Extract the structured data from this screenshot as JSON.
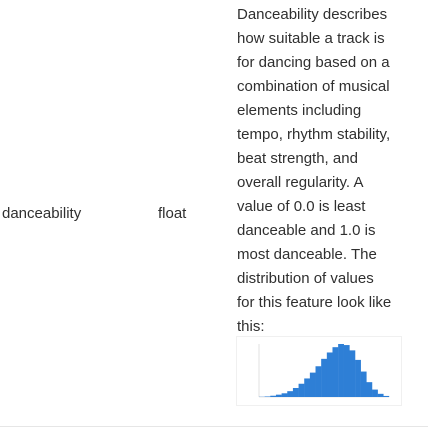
{
  "row": {
    "name": "danceability",
    "type": "float",
    "description_lines": [
      "Danceability describes",
      "how suitable a track is",
      "for dancing based on a",
      "combination of musical",
      "elements including",
      "tempo, rhythm stability,",
      "beat strength, and",
      "overall regularity. A",
      "value of 0.0 is least",
      "danceable and 1.0 is",
      "most danceable. The",
      "distribution of values",
      "for this feature look like",
      "this:"
    ]
  },
  "histogram": {
    "bar_color": "#2e7fd6",
    "values": [
      0.2,
      0.5,
      1.2,
      2.2,
      3.5,
      5.5,
      8.5,
      12.5,
      17.5,
      23,
      29,
      36,
      42,
      47,
      50,
      49,
      44,
      35,
      24,
      14,
      7,
      3,
      1
    ]
  }
}
